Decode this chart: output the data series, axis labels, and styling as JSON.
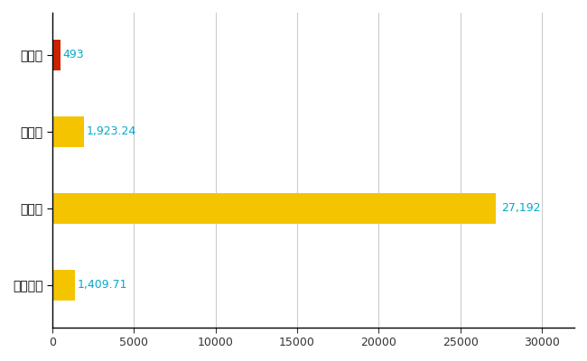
{
  "categories": [
    "篠栗町",
    "県平均",
    "県最大",
    "全国平均"
  ],
  "values": [
    493,
    1923.24,
    27192,
    1409.71
  ],
  "bar_colors": [
    "#cc2200",
    "#f5c400",
    "#f5c400",
    "#f5c400"
  ],
  "bar_labels": [
    "493",
    "1,923.24",
    "27,192",
    "1,409.71"
  ],
  "xlim": [
    0,
    32000
  ],
  "xticks": [
    0,
    5000,
    10000,
    15000,
    20000,
    25000,
    30000
  ],
  "xtick_labels": [
    "0",
    "5000",
    "10000",
    "15000",
    "20000",
    "25000",
    "30000"
  ],
  "background_color": "#ffffff",
  "grid_color": "#cccccc",
  "label_fontsize": 10,
  "tick_fontsize": 9,
  "bar_height": 0.4,
  "value_label_color": "#00aacc"
}
